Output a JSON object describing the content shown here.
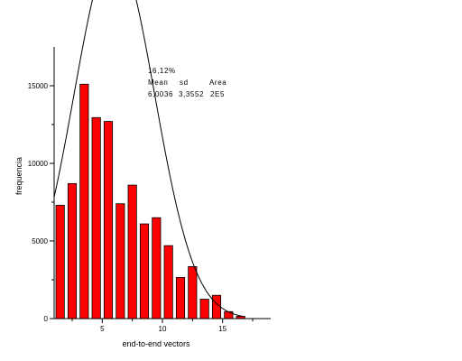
{
  "chart_data": {
    "type": "bar",
    "title": "",
    "xlabel": "end-to-end vectors",
    "ylabel": "frequencia",
    "x": [
      1.5,
      2.5,
      3.5,
      4.5,
      5.5,
      6.5,
      7.5,
      8.5,
      9.5,
      10.5,
      11.5,
      12.5,
      13.5,
      14.5,
      15.5,
      16.5
    ],
    "values": [
      7300,
      8700,
      15100,
      12950,
      12700,
      7400,
      8600,
      6100,
      6500,
      4700,
      2650,
      3350,
      1250,
      1500,
      450,
      150
    ],
    "xlim": [
      1,
      19
    ],
    "ylim": [
      0,
      17500
    ],
    "xticks": [
      5,
      10,
      15
    ],
    "yticks": [
      0,
      5000,
      10000,
      15000
    ],
    "grid": false,
    "bar_color": "#ff0000",
    "fit_curve": {
      "type": "gaussian",
      "mean": 6.0036,
      "sd": 3.3552,
      "area": 200000,
      "color": "#000000"
    },
    "annotations": {
      "percent": "16,12%",
      "header": [
        "Mean",
        "sd",
        "Area"
      ],
      "values": [
        "6,0036",
        "3,3552",
        "2E5"
      ]
    }
  }
}
